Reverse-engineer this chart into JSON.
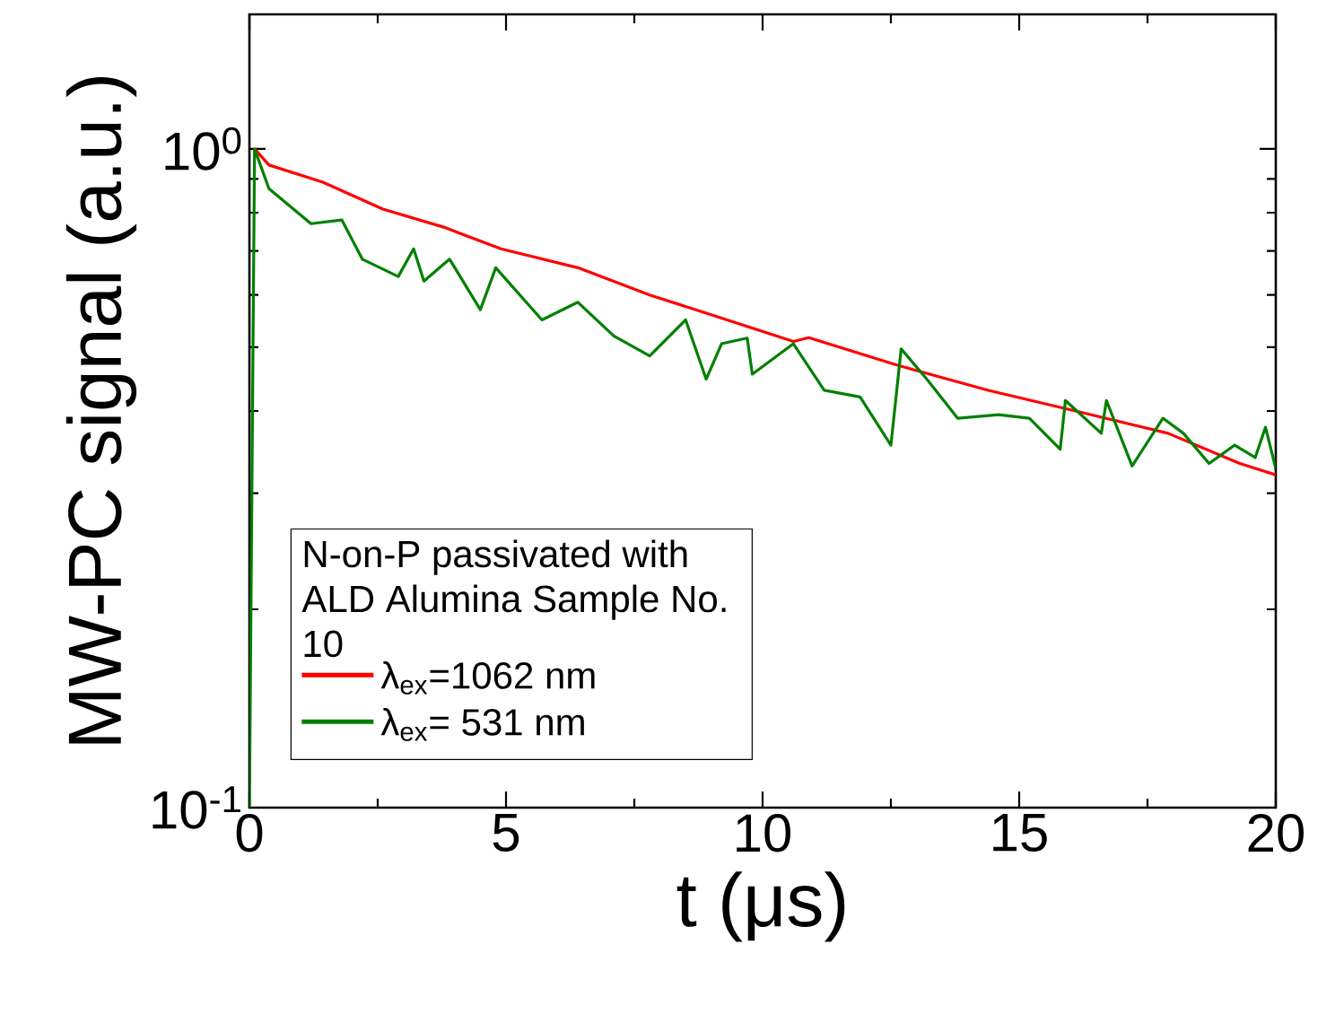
{
  "chart_data": {
    "type": "line",
    "xlabel": "t (μs)",
    "ylabel": "MW-PC signal (a.u.)",
    "legend_title": "N-on-P passivated with ALD Alumina Sample No. 10",
    "log": "y",
    "xlim": [
      0,
      20
    ],
    "ylim": [
      0.1,
      1.6
    ],
    "xticks": [
      0,
      5,
      10,
      15,
      20
    ],
    "yticks": [
      {
        "value": 0.1,
        "label": "10$^{-1}$"
      },
      {
        "value": 1,
        "label": "10$^{0}$"
      }
    ],
    "legend": "bottom left",
    "marker": "none",
    "line_style": "solid",
    "series": [
      {
        "name": "λ$_{ex}$=1062 nm",
        "color": "#ff0000",
        "x": [
          0.1,
          0.38,
          1.43,
          2.6,
          3.8,
          4.9,
          6.4,
          7.8,
          9.0,
          10.6,
          10.9,
          12.6,
          14.4,
          16.1,
          17.9,
          19.3,
          20
        ],
        "values": [
          1.0,
          0.945,
          0.89,
          0.81,
          0.76,
          0.705,
          0.66,
          0.6,
          0.56,
          0.51,
          0.517,
          0.47,
          0.43,
          0.4,
          0.37,
          0.333,
          0.32
        ]
      },
      {
        "name": "λ$_{ex}$= 531 nm",
        "color": "#008000",
        "x": [
          0,
          0.1,
          0.38,
          1.2,
          1.8,
          2.2,
          2.9,
          3.2,
          3.4,
          3.9,
          4.5,
          4.8,
          5.7,
          6.4,
          7.1,
          7.8,
          8.5,
          8.9,
          9.2,
          9.7,
          9.8,
          10.6,
          11.2,
          11.9,
          12.5,
          12.7,
          13.2,
          13.8,
          14.6,
          15.2,
          15.8,
          15.9,
          16.6,
          16.7,
          17.2,
          17.8,
          18.2,
          18.7,
          19.2,
          19.6,
          19.8,
          20
        ],
        "values": [
          0.1,
          1.0,
          0.87,
          0.77,
          0.78,
          0.68,
          0.64,
          0.705,
          0.63,
          0.68,
          0.57,
          0.66,
          0.55,
          0.585,
          0.52,
          0.485,
          0.55,
          0.447,
          0.506,
          0.516,
          0.455,
          0.506,
          0.43,
          0.42,
          0.355,
          0.497,
          0.447,
          0.39,
          0.395,
          0.39,
          0.35,
          0.415,
          0.37,
          0.415,
          0.33,
          0.39,
          0.37,
          0.333,
          0.355,
          0.34,
          0.378,
          0.327
        ]
      }
    ]
  }
}
